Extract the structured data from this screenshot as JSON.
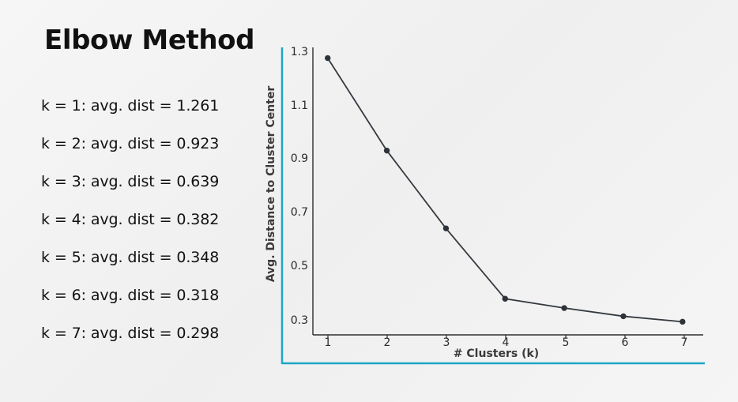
{
  "slide": {
    "title": "Elbow Method",
    "results": [
      "k = 1: avg. dist = 1.261",
      "k = 2: avg. dist = 0.923",
      "k = 3: avg. dist = 0.639",
      "k = 4: avg. dist = 0.382",
      "k = 5: avg. dist = 0.348",
      "k = 6: avg. dist = 0.318",
      "k = 7: avg. dist = 0.298"
    ]
  },
  "chart_data": {
    "type": "line",
    "x": [
      1,
      2,
      3,
      4,
      5,
      6,
      7
    ],
    "y": [
      1.261,
      0.923,
      0.639,
      0.382,
      0.348,
      0.318,
      0.298
    ],
    "xlabel": "# Clusters (k)",
    "ylabel": "Avg. Distance to Cluster Center",
    "xticks": [
      "1",
      "2",
      "3",
      "4",
      "5",
      "6",
      "7"
    ],
    "yticks": [
      "0.3",
      "0.5",
      "0.7",
      "0.9",
      "1.1",
      "1.3"
    ],
    "xlim": [
      0.75,
      7.35
    ],
    "ylim": [
      0.25,
      1.3
    ],
    "grid": false,
    "accent_color": "#1ea6c8",
    "line_color": "#34393f",
    "point_color": "#2d3339"
  }
}
